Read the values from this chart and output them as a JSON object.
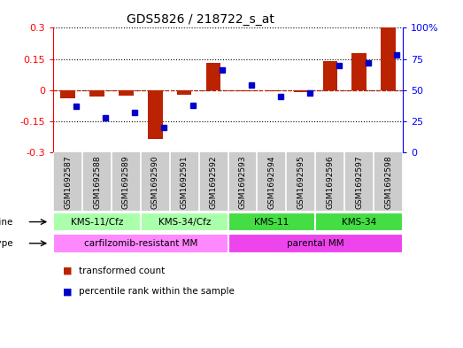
{
  "title": "GDS5826 / 218722_s_at",
  "samples": [
    "GSM1692587",
    "GSM1692588",
    "GSM1692589",
    "GSM1692590",
    "GSM1692591",
    "GSM1692592",
    "GSM1692593",
    "GSM1692594",
    "GSM1692595",
    "GSM1692596",
    "GSM1692597",
    "GSM1692598"
  ],
  "transformed_count": [
    -0.04,
    -0.03,
    -0.025,
    -0.235,
    -0.02,
    0.13,
    -0.005,
    -0.005,
    -0.01,
    0.14,
    0.18,
    0.3
  ],
  "percentile_rank": [
    37,
    28,
    32,
    20,
    38,
    66,
    54,
    45,
    48,
    70,
    72,
    78
  ],
  "cell_lines": [
    {
      "label": "KMS-11/Cfz",
      "start": 0,
      "end": 2,
      "color": "#aaffaa"
    },
    {
      "label": "KMS-34/Cfz",
      "start": 3,
      "end": 5,
      "color": "#aaffaa"
    },
    {
      "label": "KMS-11",
      "start": 6,
      "end": 8,
      "color": "#44dd44"
    },
    {
      "label": "KMS-34",
      "start": 9,
      "end": 11,
      "color": "#44dd44"
    }
  ],
  "cell_types": [
    {
      "label": "carfilzomib-resistant MM",
      "start": 0,
      "end": 5,
      "color": "#ff88ff"
    },
    {
      "label": "parental MM",
      "start": 6,
      "end": 11,
      "color": "#ee44ee"
    }
  ],
  "ylim_left": [
    -0.3,
    0.3
  ],
  "ylim_right": [
    0,
    100
  ],
  "yticks_left": [
    -0.3,
    -0.15,
    0,
    0.15,
    0.3
  ],
  "yticks_right": [
    0,
    25,
    50,
    75,
    100
  ],
  "bar_color_red": "#bb2200",
  "bar_color_blue": "#0000cc",
  "bar_width": 0.5,
  "background_color": "#ffffff",
  "plot_bg": "#ffffff",
  "grid_color": "#000000",
  "label_bg": "#cccccc"
}
